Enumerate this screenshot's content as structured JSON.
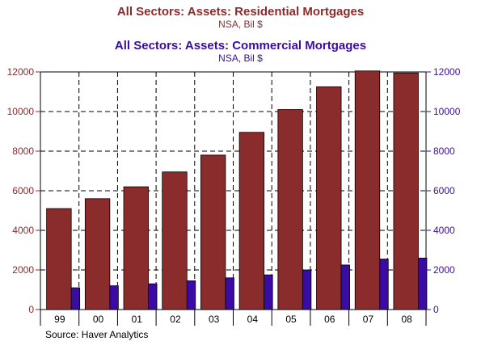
{
  "chart_data": {
    "type": "bar",
    "title": "All Sectors: Assets: Residential Mortgages",
    "subtitle": "NSA, Bil $",
    "title2": "All Sectors: Assets: Commercial Mortgages",
    "subtitle2": "NSA, Bil $",
    "categories": [
      "99",
      "00",
      "01",
      "02",
      "03",
      "04",
      "05",
      "06",
      "07",
      "08"
    ],
    "series": [
      {
        "name": "All Sectors: Assets: Residential Mortgages",
        "axis": "left",
        "color": "#8b2c2c",
        "values": [
          5100,
          5600,
          6200,
          6950,
          7800,
          8950,
          10100,
          11250,
          12050,
          11950
        ]
      },
      {
        "name": "All Sectors: Assets: Commercial Mortgages",
        "axis": "right",
        "color": "#3a0ca3",
        "values": [
          1100,
          1200,
          1300,
          1450,
          1600,
          1750,
          2000,
          2250,
          2550,
          2600
        ]
      }
    ],
    "ylim": [
      0,
      12000
    ],
    "yticks": [
      "0",
      "2000",
      "4000",
      "6000",
      "8000",
      "10000",
      "12000"
    ],
    "y2lim": [
      0,
      12000
    ],
    "y2ticks": [
      "0",
      "2000",
      "4000",
      "6000",
      "8000",
      "10000",
      "12000"
    ],
    "left_axis_color": "#8b2c2c",
    "right_axis_color": "#3a0ca3",
    "grid": true,
    "source": "Source: Haver Analytics"
  }
}
